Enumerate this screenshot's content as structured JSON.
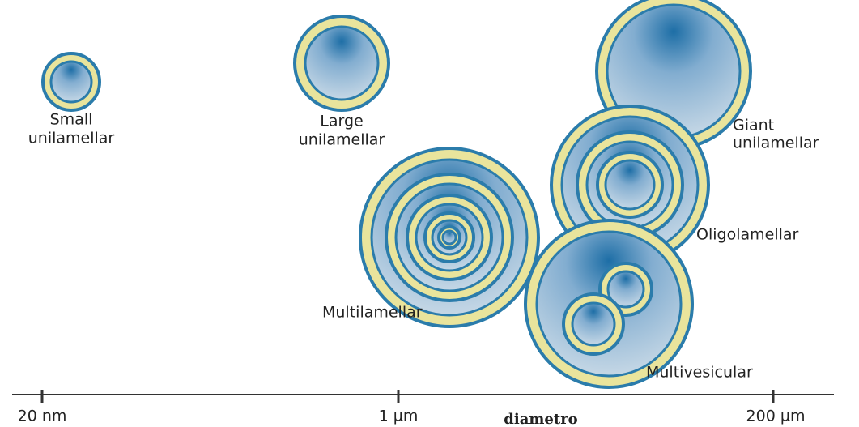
{
  "vesicles": [
    {
      "label": [
        "Small",
        "unilamellar"
      ]
    },
    {
      "label": [
        "Large",
        "unilamellar"
      ]
    },
    {
      "label": [
        "Giant",
        "unilamellar"
      ]
    },
    {
      "label": [
        "Oligolamellar"
      ]
    },
    {
      "label": [
        "Multilamellar"
      ]
    },
    {
      "label": [
        "Multivesicular"
      ]
    }
  ],
  "axis": {
    "ticks": [
      "20 nm",
      "1 µm",
      "200 µm"
    ],
    "label": "diametro"
  }
}
